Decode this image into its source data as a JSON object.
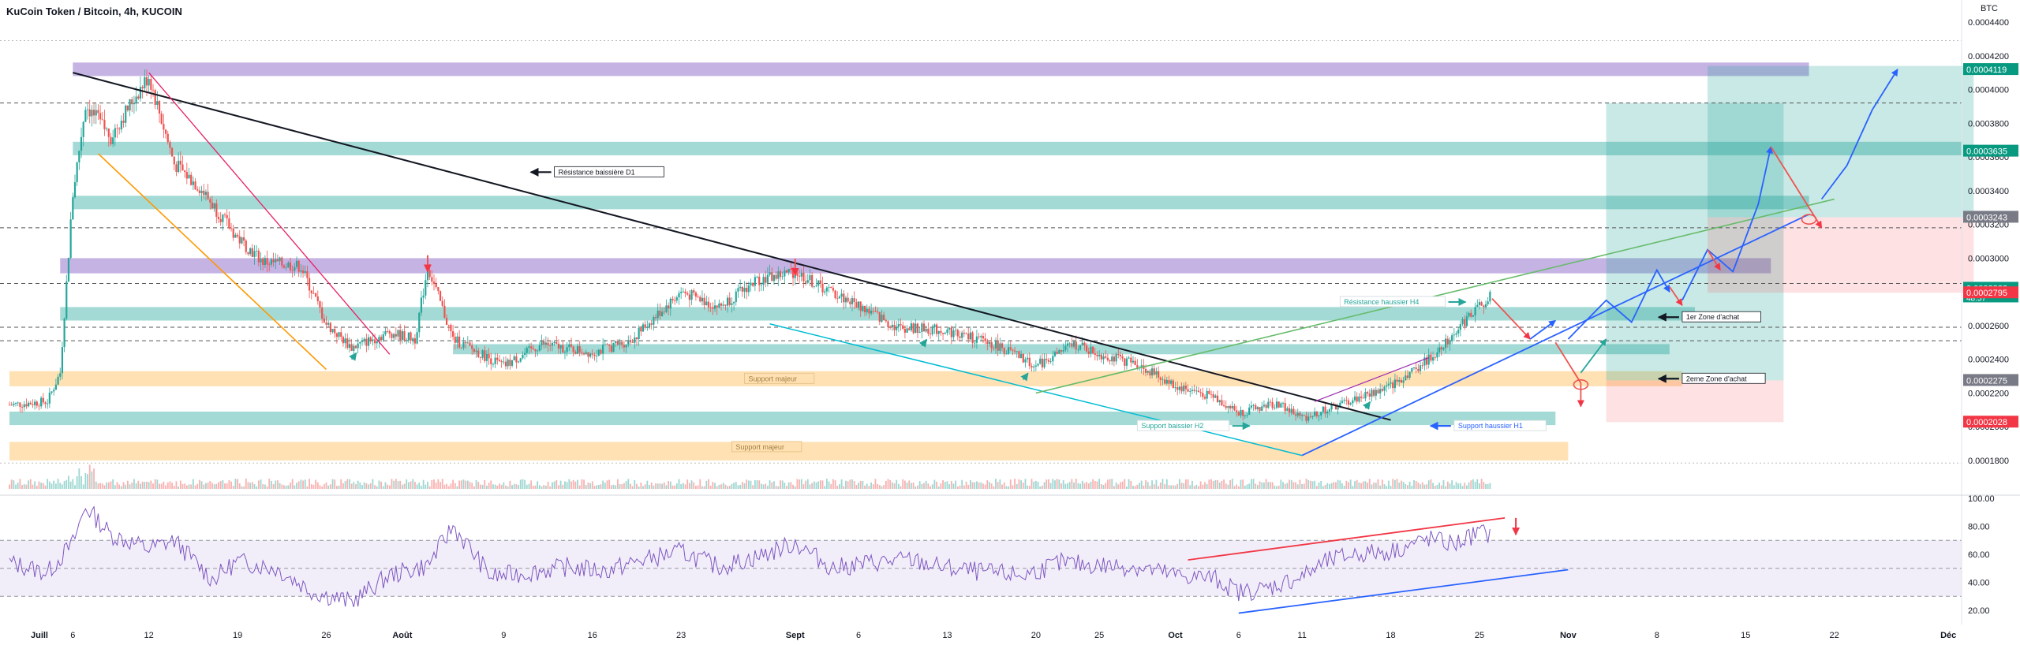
{
  "header": {
    "title": "KuCoin Token / Bitcoin, 4h, KUCOIN",
    "unit": "BTC"
  },
  "chart_data": [
    {
      "type": "candlestick",
      "title": "KuCoin Token / Bitcoin, 4h, KUCOIN",
      "ylim": [
        0.00017,
        0.00044
      ],
      "y_ticks": [
        "0.0001800",
        "0.0002000",
        "0.0002200",
        "0.0002400",
        "0.0002600",
        "0.0002800",
        "0.0003000",
        "0.0003200",
        "0.0003400",
        "0.0003600",
        "0.0003800",
        "0.0004000",
        "0.0004200",
        "0.0004400"
      ],
      "x_ticks": [
        "Juill",
        "6",
        "12",
        "19",
        "26",
        "Août",
        "9",
        "16",
        "23",
        "Sept",
        "6",
        "13",
        "20",
        "25",
        "Oct",
        "6",
        "11",
        "18",
        "25",
        "Nov",
        "8",
        "15",
        "22",
        "Déc"
      ],
      "price_series": {
        "x": [
          "Jul 1",
          "Jul 4",
          "Jul 5",
          "Jul 6",
          "Jul 7",
          "Jul 9",
          "Jul 11",
          "Jul 12",
          "Jul 14",
          "Jul 16",
          "Jul 19",
          "Jul 21",
          "Jul 24",
          "Jul 26",
          "Jul 28",
          "Jul 31",
          "Aug 2",
          "Aug 3",
          "Aug 5",
          "Aug 9",
          "Aug 12",
          "Aug 16",
          "Aug 19",
          "Aug 23",
          "Aug 26",
          "Aug 29",
          "Sep 1",
          "Sep 3",
          "Sep 6",
          "Sep 9",
          "Sep 13",
          "Sep 17",
          "Sep 20",
          "Sep 23",
          "Sep 25",
          "Sep 28",
          "Oct 1",
          "Oct 4",
          "Oct 6",
          "Oct 9",
          "Oct 11",
          "Oct 14",
          "Oct 18",
          "Oct 21",
          "Oct 23",
          "Oct 25",
          "Oct 26"
        ],
        "close": [
          0.000213,
          0.000215,
          0.000232,
          0.000338,
          0.000391,
          0.000372,
          0.000397,
          0.000408,
          0.000356,
          0.000342,
          0.000312,
          0.000298,
          0.000295,
          0.000261,
          0.000247,
          0.000256,
          0.000252,
          0.000295,
          0.000252,
          0.000236,
          0.000249,
          0.000244,
          0.000251,
          0.00028,
          0.000271,
          0.000287,
          0.000292,
          0.000283,
          0.000272,
          0.000259,
          0.000257,
          0.000248,
          0.000236,
          0.000249,
          0.000243,
          0.000237,
          0.000224,
          0.000218,
          0.000208,
          0.000214,
          0.000205,
          0.000213,
          0.000224,
          0.00024,
          0.000256,
          0.000272,
          0.000279
        ]
      },
      "price_labels": [
        {
          "value": 0.0004119,
          "text": "0.0004119",
          "color": "#089981"
        },
        {
          "value": 0.0003635,
          "text": "0.0003635",
          "color": "#089981"
        },
        {
          "value": 0.0003243,
          "text": "0.0003243",
          "color": "#787b86"
        },
        {
          "value": 0.0002822,
          "text": "0.0002822",
          "sub": "48:57",
          "color": "#089981"
        },
        {
          "value": 0.0002795,
          "text": "0.0002795",
          "color": "#f23645"
        },
        {
          "value": 0.0002275,
          "text": "0.0002275",
          "color": "#787b86"
        },
        {
          "value": 0.0002028,
          "text": "0.0002028",
          "color": "#f23645"
        }
      ],
      "annotations": [
        {
          "text": "Résistance baissière D1",
          "date": "Aug 13",
          "y": 0.000351,
          "color": "#131722",
          "arrow": "left"
        },
        {
          "text": "Résistance haussier H4",
          "date": "Oct 14",
          "y": 0.000274,
          "color": "#26a69a",
          "arrow": "right"
        },
        {
          "text": "1er Zone d'achat",
          "date": "Nov 10",
          "y": 0.000265,
          "color": "#131722",
          "arrow": "left"
        },
        {
          "text": "2eme Zone d'achat",
          "date": "Nov 10",
          "y": 0.0002285,
          "color": "#131722",
          "arrow": "left"
        },
        {
          "text": "Support majeur",
          "date": "Aug 28",
          "y": 0.0002285,
          "color": "#c2b280",
          "arrow": "none"
        },
        {
          "text": "Support majeur",
          "date": "Aug 27",
          "y": 0.000188,
          "color": "#c2b280",
          "arrow": "none"
        },
        {
          "text": "Support baissier H2",
          "date": "Sep 28",
          "y": 0.0002005,
          "color": "#26a69a",
          "arrow": "right"
        },
        {
          "text": "Support haussier H1",
          "date": "Oct 23",
          "y": 0.0002005,
          "color": "#2962ff",
          "arrow": "left"
        }
      ],
      "zones": [
        {
          "from_date": "Jul 6",
          "to_date": "Nov 20",
          "y0": 0.000408,
          "y1": 0.000416,
          "color": "purple"
        },
        {
          "from_date": "Jul 6",
          "to_date": "Dec 3",
          "y0": 0.000361,
          "y1": 0.000369,
          "color": "teal"
        },
        {
          "from_date": "Jul 6",
          "to_date": "Nov 20",
          "y0": 0.000329,
          "y1": 0.000337,
          "color": "teal"
        },
        {
          "from_date": "Jul 5",
          "to_date": "Nov 17",
          "y0": 0.000291,
          "y1": 0.0003,
          "color": "purple"
        },
        {
          "from_date": "Jul 5",
          "to_date": "Nov 11",
          "y0": 0.000263,
          "y1": 0.000271,
          "color": "teal"
        },
        {
          "from_date": "Aug 5",
          "to_date": "Nov 9",
          "y0": 0.000243,
          "y1": 0.000249,
          "color": "teal"
        },
        {
          "from_date": "Jul 1",
          "to_date": "Nov 10",
          "y0": 0.000224,
          "y1": 0.000233,
          "color": "orange"
        },
        {
          "from_date": "Jul 1",
          "to_date": "Oct 31",
          "y0": 0.000201,
          "y1": 0.000209,
          "color": "teal"
        },
        {
          "from_date": "Jul 1",
          "to_date": "Nov 1",
          "y0": 0.00018,
          "y1": 0.000191,
          "color": "orange"
        }
      ],
      "grid": false
    },
    {
      "type": "line",
      "title": "RSI",
      "ylim": [
        10,
        100
      ],
      "y_ticks": [
        "20.00",
        "40.00",
        "60.00",
        "80.00",
        "100.00"
      ],
      "bands": {
        "upper": 70,
        "middle": 50,
        "lower": 30
      },
      "x": [
        "Jul 1",
        "Jul 4",
        "Jul 6",
        "Jul 7",
        "Jul 9",
        "Jul 12",
        "Jul 14",
        "Jul 17",
        "Jul 19",
        "Jul 22",
        "Jul 25",
        "Jul 28",
        "Jul 31",
        "Aug 3",
        "Aug 5",
        "Aug 8",
        "Aug 11",
        "Aug 14",
        "Aug 17",
        "Aug 20",
        "Aug 23",
        "Aug 26",
        "Aug 29",
        "Sep 1",
        "Sep 4",
        "Sep 7",
        "Sep 10",
        "Sep 13",
        "Sep 16",
        "Sep 19",
        "Sep 22",
        "Sep 25",
        "Sep 28",
        "Oct 1",
        "Oct 4",
        "Oct 6",
        "Oct 8",
        "Oct 11",
        "Oct 13",
        "Oct 15",
        "Oct 18",
        "Oct 21",
        "Oct 23",
        "Oct 25",
        "Oct 26"
      ],
      "values": [
        54,
        47,
        68,
        94,
        74,
        64,
        70,
        42,
        55,
        50,
        33,
        26,
        45,
        52,
        80,
        44,
        47,
        51,
        48,
        56,
        62,
        51,
        58,
        68,
        50,
        54,
        56,
        50,
        47,
        45,
        54,
        52,
        51,
        45,
        43,
        33,
        35,
        44,
        55,
        60,
        62,
        71,
        67,
        76,
        73
      ]
    }
  ]
}
